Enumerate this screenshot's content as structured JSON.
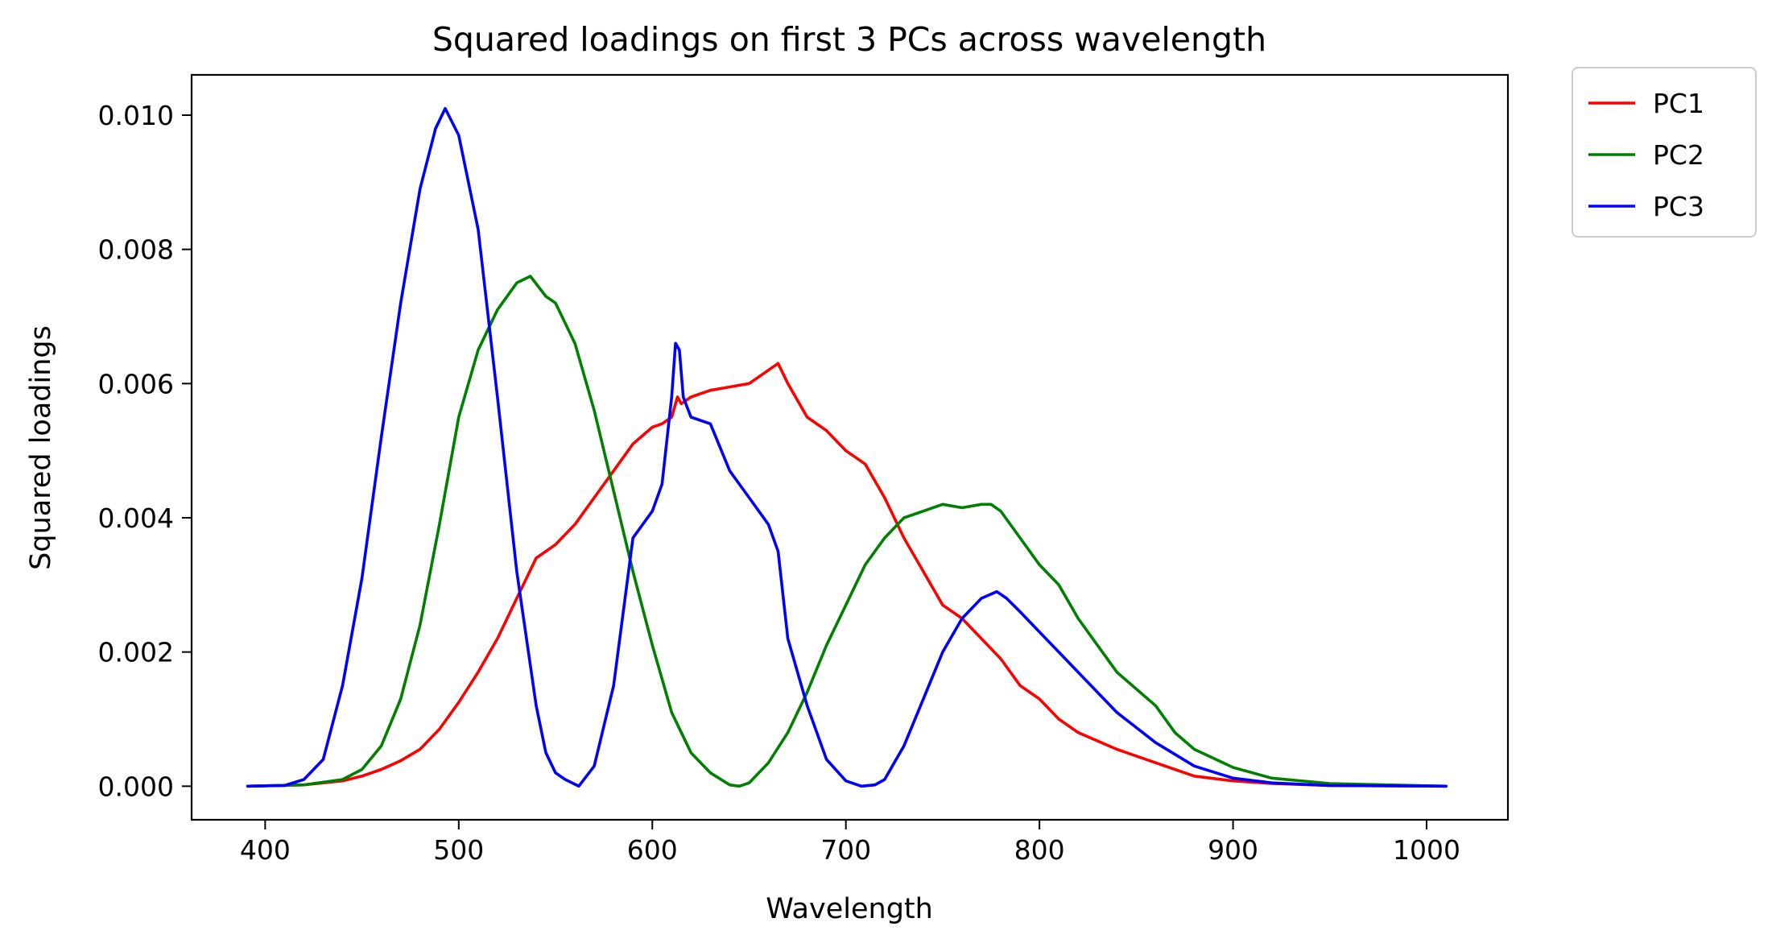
{
  "chart_data": {
    "type": "line",
    "title": "Squared loadings on first 3 PCs across wavelength",
    "xlabel": "Wavelength",
    "ylabel": "Squared loadings",
    "xlim": [
      362,
      1042
    ],
    "ylim": [
      -0.0005,
      0.0106
    ],
    "xticks": [
      400,
      500,
      600,
      700,
      800,
      900,
      1000
    ],
    "yticks": [
      0.0,
      0.002,
      0.004,
      0.006,
      0.008,
      0.01
    ],
    "xtick_labels": [
      "400",
      "500",
      "600",
      "700",
      "800",
      "900",
      "1000"
    ],
    "ytick_labels": [
      "0.000",
      "0.002",
      "0.004",
      "0.006",
      "0.008",
      "0.010"
    ],
    "legend_position": "outside-top-right",
    "grid": false,
    "series": [
      {
        "name": "PC1",
        "color": "#ff0000",
        "x": [
          391,
          420,
          440,
          450,
          460,
          470,
          480,
          490,
          500,
          510,
          520,
          530,
          540,
          550,
          560,
          570,
          580,
          590,
          600,
          605,
          610,
          613,
          615,
          620,
          630,
          640,
          650,
          660,
          665,
          670,
          680,
          690,
          700,
          710,
          720,
          730,
          740,
          750,
          760,
          770,
          780,
          790,
          800,
          810,
          820,
          840,
          860,
          880,
          900,
          920,
          950,
          1010
        ],
        "y": [
          0.0,
          2e-05,
          8e-05,
          0.00015,
          0.00025,
          0.00038,
          0.00055,
          0.00085,
          0.00125,
          0.0017,
          0.0022,
          0.0028,
          0.0034,
          0.0036,
          0.0039,
          0.0043,
          0.0047,
          0.0051,
          0.00535,
          0.0054,
          0.0055,
          0.0058,
          0.0057,
          0.0058,
          0.0059,
          0.00595,
          0.006,
          0.0062,
          0.0063,
          0.006,
          0.0055,
          0.0053,
          0.005,
          0.0048,
          0.0043,
          0.0037,
          0.0032,
          0.0027,
          0.0025,
          0.0022,
          0.0019,
          0.0015,
          0.0013,
          0.001,
          0.0008,
          0.00055,
          0.00035,
          0.00015,
          8e-05,
          4e-05,
          1e-05,
          0.0
        ]
      },
      {
        "name": "PC2",
        "color": "#008000",
        "x": [
          391,
          420,
          440,
          450,
          460,
          470,
          480,
          490,
          500,
          510,
          520,
          530,
          537,
          545,
          550,
          560,
          570,
          580,
          590,
          600,
          610,
          615,
          620,
          630,
          640,
          645,
          650,
          660,
          670,
          680,
          690,
          700,
          710,
          720,
          730,
          740,
          750,
          760,
          770,
          775,
          780,
          790,
          800,
          810,
          820,
          840,
          860,
          870,
          880,
          900,
          920,
          950,
          1010
        ],
        "y": [
          0.0,
          2e-05,
          0.0001,
          0.00025,
          0.0006,
          0.0013,
          0.0024,
          0.0039,
          0.0055,
          0.0065,
          0.0071,
          0.0075,
          0.0076,
          0.0073,
          0.0072,
          0.0066,
          0.0056,
          0.0044,
          0.0032,
          0.0021,
          0.0011,
          0.0008,
          0.0005,
          0.0002,
          2e-05,
          0.0,
          5e-05,
          0.00035,
          0.0008,
          0.0014,
          0.0021,
          0.0027,
          0.0033,
          0.0037,
          0.004,
          0.0041,
          0.0042,
          0.00415,
          0.0042,
          0.0042,
          0.0041,
          0.0037,
          0.0033,
          0.003,
          0.0025,
          0.0017,
          0.0012,
          0.0008,
          0.00055,
          0.00028,
          0.00012,
          4e-05,
          0.0
        ]
      },
      {
        "name": "PC3",
        "color": "#0000ff",
        "x": [
          391,
          410,
          420,
          430,
          440,
          450,
          460,
          470,
          480,
          488,
          493,
          500,
          510,
          520,
          530,
          540,
          545,
          550,
          555,
          562,
          570,
          580,
          590,
          600,
          605,
          610,
          612,
          614,
          616,
          620,
          630,
          640,
          650,
          660,
          665,
          670,
          680,
          690,
          700,
          708,
          715,
          720,
          730,
          740,
          750,
          760,
          770,
          778,
          783,
          790,
          800,
          810,
          820,
          840,
          860,
          880,
          900,
          920,
          950,
          1010
        ],
        "y": [
          0.0,
          1e-05,
          0.0001,
          0.0004,
          0.0015,
          0.0031,
          0.0052,
          0.0072,
          0.0089,
          0.0098,
          0.0101,
          0.0097,
          0.0083,
          0.0058,
          0.0032,
          0.0012,
          0.0005,
          0.0002,
          0.0001,
          0.0,
          0.0003,
          0.0015,
          0.0037,
          0.0041,
          0.0045,
          0.0058,
          0.0066,
          0.0065,
          0.0058,
          0.0055,
          0.0054,
          0.0047,
          0.0043,
          0.0039,
          0.0035,
          0.0022,
          0.0012,
          0.0004,
          8e-05,
          0.0,
          2e-05,
          0.0001,
          0.0006,
          0.0013,
          0.002,
          0.0025,
          0.0028,
          0.0029,
          0.0028,
          0.0026,
          0.0023,
          0.002,
          0.0017,
          0.0011,
          0.00065,
          0.0003,
          0.00012,
          5e-05,
          1e-05,
          0.0
        ]
      }
    ]
  }
}
